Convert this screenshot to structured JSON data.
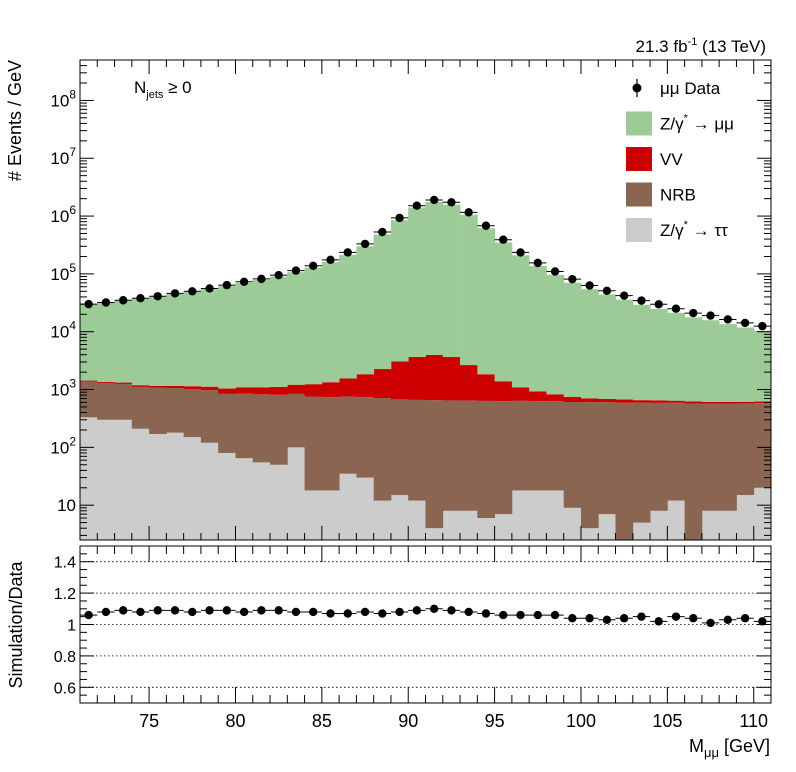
{
  "header": {
    "lumi": "21.3 fb",
    "lumi_sup": "-1",
    "energy": " (13 TeV)",
    "category_main": "N",
    "category_sub": "jets",
    "category_rel": " ≥ 0"
  },
  "chart_data": [
    {
      "type": "bar",
      "name": "upper",
      "ylabel": "# Events / GeV",
      "yscale": "log",
      "ylim": [
        2.5,
        500000000
      ],
      "xlim": [
        71,
        111
      ],
      "bin_edges": [
        71,
        72,
        73,
        74,
        75,
        76,
        77,
        78,
        79,
        80,
        81,
        82,
        83,
        84,
        85,
        86,
        87,
        88,
        89,
        90,
        91,
        92,
        93,
        94,
        95,
        96,
        97,
        98,
        99,
        100,
        101,
        102,
        103,
        104,
        105,
        106,
        107,
        108,
        109,
        110,
        111
      ],
      "yticks": [
        {
          "v": 100000000,
          "label": "10",
          "sup": "8"
        },
        {
          "v": 10000000,
          "label": "10",
          "sup": "7"
        },
        {
          "v": 1000000,
          "label": "10",
          "sup": "6"
        },
        {
          "v": 100000,
          "label": "10",
          "sup": "5"
        },
        {
          "v": 10000,
          "label": "10",
          "sup": "4"
        },
        {
          "v": 1000,
          "label": "10",
          "sup": "3"
        },
        {
          "v": 100,
          "label": "10",
          "sup": "2"
        },
        {
          "v": 10,
          "label": "10",
          "sup": ""
        }
      ],
      "stack_order": [
        "Z/γ* → ττ",
        "NRB",
        "VV",
        "Z/γ* → μμ"
      ],
      "series": [
        {
          "name": "Z/γ* → ττ",
          "color": "#cccccc",
          "values": [
            330,
            300,
            300,
            210,
            170,
            180,
            150,
            120,
            80,
            65,
            55,
            50,
            100,
            18,
            18,
            35,
            30,
            12,
            15,
            12,
            4,
            8,
            8,
            6,
            7,
            18,
            18,
            18,
            9,
            4,
            7,
            2,
            5,
            8,
            12,
            2,
            8,
            8,
            15,
            20
          ]
        },
        {
          "name": "NRB",
          "color": "#8a6552",
          "values": [
            1050,
            1000,
            950,
            900,
            900,
            880,
            870,
            850,
            760,
            790,
            770,
            760,
            740,
            740,
            720,
            720,
            710,
            700,
            660,
            650,
            650,
            640,
            640,
            630,
            620,
            620,
            610,
            610,
            600,
            600,
            600,
            590,
            590,
            580,
            580,
            570,
            560,
            560,
            560,
            560
          ]
        },
        {
          "name": "VV",
          "color": "#cc0000",
          "values": [
            50,
            60,
            70,
            80,
            90,
            100,
            120,
            150,
            200,
            240,
            260,
            300,
            370,
            480,
            600,
            800,
            1100,
            1550,
            2400,
            3000,
            3300,
            3000,
            2000,
            1200,
            750,
            450,
            300,
            200,
            140,
            100,
            80,
            80,
            60,
            60,
            50,
            50,
            45,
            45,
            40,
            40
          ]
        },
        {
          "name": "Z/γ* → μμ",
          "color": "#9ccb98",
          "values": [
            28700,
            30300,
            33400,
            36200,
            39200,
            43800,
            47700,
            53200,
            60500,
            68600,
            77100,
            88800,
            105600,
            126800,
            159000,
            212000,
            298000,
            478000,
            846000,
            1404000,
            1747000,
            1569000,
            1053000,
            613000,
            348000,
            208000,
            136000,
            95400,
            69500,
            53600,
            43400,
            35200,
            28500,
            24100,
            20600,
            17100,
            15200,
            12900,
            11200,
            9800
          ]
        }
      ],
      "data": {
        "name": "μμ Data",
        "values": [
          30000,
          32000,
          35000,
          38000,
          41000,
          46000,
          50000,
          56000,
          64000,
          73000,
          82000,
          95000,
          114000,
          138000,
          175000,
          235000,
          330000,
          530000,
          930000,
          1510000,
          1900000,
          1730000,
          1160000,
          680000,
          390000,
          235000,
          155000,
          110000,
          81000,
          63000,
          51000,
          42000,
          34500,
          29800,
          25000,
          21000,
          19000,
          16300,
          14200,
          12500
        ]
      }
    },
    {
      "type": "scatter",
      "name": "ratio",
      "ylabel": "Simulation/Data",
      "xlabel_main": "M",
      "xlabel_sub": "μμ",
      "xlabel_unit": " [GeV]",
      "ylim": [
        0.5,
        1.5
      ],
      "xlim": [
        71,
        111
      ],
      "ytick_values": [
        0.6,
        0.8,
        1,
        1.2,
        1.4
      ],
      "ytick_labels": [
        "0.6",
        "0.8",
        "1",
        "1.2",
        "1.4"
      ],
      "xtick_values": [
        75,
        80,
        85,
        90,
        95,
        100,
        105,
        110
      ],
      "xtick_labels": [
        "75",
        "80",
        "85",
        "90",
        "95",
        "100",
        "105",
        "110"
      ],
      "gridlines": [
        0.6,
        0.8,
        1.0,
        1.2,
        1.4
      ],
      "x": [
        71.5,
        72.5,
        73.5,
        74.5,
        75.5,
        76.5,
        77.5,
        78.5,
        79.5,
        80.5,
        81.5,
        82.5,
        83.5,
        84.5,
        85.5,
        86.5,
        87.5,
        88.5,
        89.5,
        90.5,
        91.5,
        92.5,
        93.5,
        94.5,
        95.5,
        96.5,
        97.5,
        98.5,
        99.5,
        100.5,
        101.5,
        102.5,
        103.5,
        104.5,
        105.5,
        106.5,
        107.5,
        108.5,
        109.5,
        110.5
      ],
      "y": [
        1.06,
        1.08,
        1.09,
        1.08,
        1.09,
        1.09,
        1.08,
        1.09,
        1.09,
        1.08,
        1.09,
        1.09,
        1.08,
        1.08,
        1.07,
        1.07,
        1.08,
        1.07,
        1.08,
        1.09,
        1.1,
        1.09,
        1.08,
        1.07,
        1.06,
        1.06,
        1.06,
        1.06,
        1.04,
        1.04,
        1.03,
        1.04,
        1.05,
        1.02,
        1.05,
        1.04,
        1.01,
        1.03,
        1.04,
        1.02
      ]
    }
  ],
  "legend": [
    {
      "type": "marker",
      "label": "μμ Data"
    },
    {
      "type": "fill",
      "color": "#9ccb98",
      "label_main": "Z/γ",
      "label_sup": "*",
      "label_rest": " → μμ"
    },
    {
      "type": "fill",
      "color": "#cc0000",
      "label_main": "VV",
      "label_sup": "",
      "label_rest": ""
    },
    {
      "type": "fill",
      "color": "#8a6552",
      "label_main": "NRB",
      "label_sup": "",
      "label_rest": ""
    },
    {
      "type": "fill",
      "color": "#cccccc",
      "label_main": "Z/γ",
      "label_sup": "*",
      "label_rest": " → ττ"
    }
  ]
}
